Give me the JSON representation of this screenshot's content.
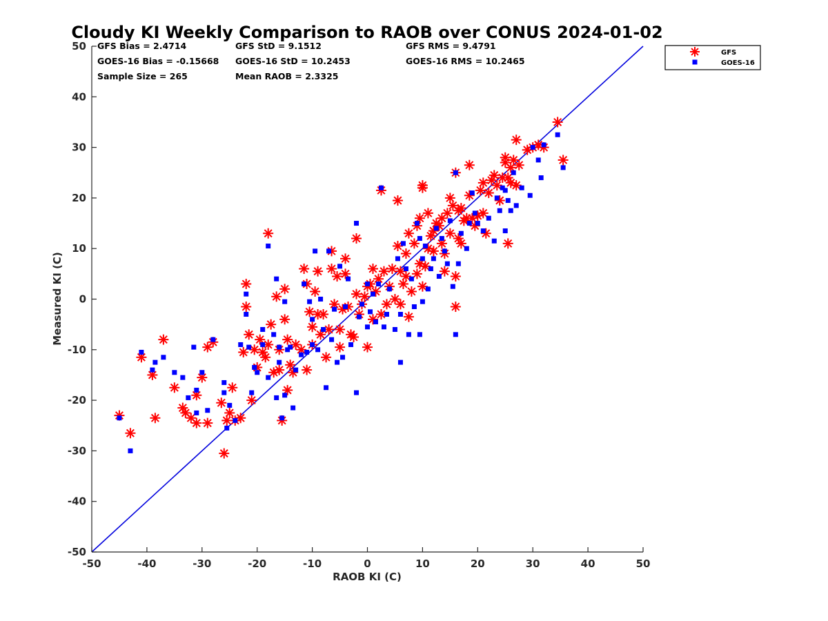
{
  "chart_data": {
    "type": "scatter",
    "title": "Cloudy KI Weekly Comparison to RAOB over CONUS 2024-01-02",
    "xlabel": "RAOB KI (C)",
    "ylabel": "Measured KI (C)",
    "xlim": [
      -50,
      50
    ],
    "ylim": [
      -50,
      50
    ],
    "xticks": [
      "-50",
      "-40",
      "-30",
      "-20",
      "-10",
      "0",
      "10",
      "20",
      "30",
      "40",
      "50"
    ],
    "yticks": [
      "-50",
      "-40",
      "-30",
      "-20",
      "-10",
      "0",
      "10",
      "20",
      "30",
      "40",
      "50"
    ],
    "grid": false,
    "legend_position": "outside top-right",
    "reference_line": {
      "x": [
        -50,
        50
      ],
      "y": [
        -50,
        50
      ],
      "color": "#0000dd"
    },
    "stats": {
      "gfs_bias": "GFS Bias = 2.4714",
      "gfs_std": "GFS StD = 9.1512",
      "gfs_rms": "GFS RMS = 9.4791",
      "goes_bias": "GOES-16 Bias = -0.15668",
      "goes_std": "GOES-16 StD = 10.2453",
      "goes_rms": "GOES-16 RMS = 10.2465",
      "sample_size": "Sample Size = 265",
      "mean_raob": "Mean RAOB = 2.3325"
    },
    "series": [
      {
        "name": "GFS",
        "marker": "asterisk",
        "color": "#ff0000",
        "points": [
          [
            -45,
            -23
          ],
          [
            -43,
            -26.5
          ],
          [
            -41,
            -11.5
          ],
          [
            -39,
            -15
          ],
          [
            -38.5,
            -23.5
          ],
          [
            -37,
            -8
          ],
          [
            -35,
            -17.5
          ],
          [
            -33.5,
            -21.5
          ],
          [
            -33,
            -22.5
          ],
          [
            -32,
            -23.5
          ],
          [
            -31,
            -24.5
          ],
          [
            -31,
            -19
          ],
          [
            -30,
            -15.5
          ],
          [
            -29,
            -24.5
          ],
          [
            -29,
            -9.5
          ],
          [
            -28,
            -8.5
          ],
          [
            -26.5,
            -20.5
          ],
          [
            -26,
            -30.5
          ],
          [
            -25.5,
            -24
          ],
          [
            -25,
            -22.5
          ],
          [
            -24.5,
            -17.5
          ],
          [
            -24,
            -24
          ],
          [
            -23,
            -23.5
          ],
          [
            -22.5,
            -10.5
          ],
          [
            -22,
            3
          ],
          [
            -22,
            -1.5
          ],
          [
            -21.5,
            -7
          ],
          [
            -21,
            -20
          ],
          [
            -20.5,
            -10
          ],
          [
            -20,
            -13.5
          ],
          [
            -19.5,
            -8
          ],
          [
            -19,
            -10.5
          ],
          [
            -18.5,
            -11.5
          ],
          [
            -18,
            13
          ],
          [
            -18,
            -9
          ],
          [
            -17.5,
            -5
          ],
          [
            -17,
            -14.5
          ],
          [
            -16.5,
            0.5
          ],
          [
            -16,
            -10
          ],
          [
            -16,
            -14
          ],
          [
            -15.5,
            -24
          ],
          [
            -15,
            2
          ],
          [
            -15,
            -4
          ],
          [
            -14.5,
            -8
          ],
          [
            -14.5,
            -18
          ],
          [
            -14,
            -13
          ],
          [
            -13.5,
            -14.5
          ],
          [
            -13,
            -9
          ],
          [
            -12,
            -10
          ],
          [
            -11.5,
            6
          ],
          [
            -11,
            3
          ],
          [
            -11,
            -14
          ],
          [
            -10.5,
            -2.5
          ],
          [
            -10,
            -5.5
          ],
          [
            -10,
            -9
          ],
          [
            -9.5,
            1.5
          ],
          [
            -9,
            5.5
          ],
          [
            -9,
            -3
          ],
          [
            -8.5,
            -7
          ],
          [
            -8,
            -3
          ],
          [
            -7.5,
            -11.5
          ],
          [
            -7,
            -6
          ],
          [
            -6.5,
            9.5
          ],
          [
            -6.5,
            6
          ],
          [
            -6,
            -1
          ],
          [
            -5.5,
            4.5
          ],
          [
            -5,
            -9.5
          ],
          [
            -5,
            -6
          ],
          [
            -4.5,
            -2
          ],
          [
            -4,
            8
          ],
          [
            -4,
            5
          ],
          [
            -3.5,
            -1.5
          ],
          [
            -3,
            -7
          ],
          [
            -2.5,
            -7.5
          ],
          [
            -2,
            1
          ],
          [
            -2,
            12
          ],
          [
            -1.5,
            -3
          ],
          [
            -1,
            -1
          ],
          [
            -0.5,
            0.5
          ],
          [
            0,
            -9.5
          ],
          [
            0,
            2.5
          ],
          [
            0.5,
            3
          ],
          [
            1,
            6
          ],
          [
            1,
            -4
          ],
          [
            1.5,
            1.5
          ],
          [
            2,
            4
          ],
          [
            2.5,
            -3
          ],
          [
            2.5,
            21.5
          ],
          [
            3,
            5.5
          ],
          [
            3.5,
            -1
          ],
          [
            4,
            2.5
          ],
          [
            4.5,
            6
          ],
          [
            5,
            0
          ],
          [
            5.5,
            19.5
          ],
          [
            5.5,
            10.5
          ],
          [
            6,
            -1
          ],
          [
            6,
            5.5
          ],
          [
            6.5,
            3
          ],
          [
            7,
            9
          ],
          [
            7,
            4.5
          ],
          [
            7.5,
            -3.5
          ],
          [
            7.5,
            13
          ],
          [
            8,
            1.5
          ],
          [
            8.5,
            11
          ],
          [
            9,
            5
          ],
          [
            9,
            14.5
          ],
          [
            9.5,
            7
          ],
          [
            9.5,
            16
          ],
          [
            10,
            22
          ],
          [
            10,
            22.5
          ],
          [
            10,
            2.5
          ],
          [
            10.5,
            6.5
          ],
          [
            11,
            17
          ],
          [
            11,
            10
          ],
          [
            11.5,
            12.5
          ],
          [
            12,
            9.5
          ],
          [
            12,
            13.5
          ],
          [
            12.5,
            15
          ],
          [
            13,
            14.5
          ],
          [
            13.5,
            11
          ],
          [
            13.5,
            16
          ],
          [
            14,
            9
          ],
          [
            14,
            5.5
          ],
          [
            14.5,
            17
          ],
          [
            15,
            13
          ],
          [
            15,
            20
          ],
          [
            15.5,
            18.5
          ],
          [
            16,
            25
          ],
          [
            16,
            -1.5
          ],
          [
            16,
            4.5
          ],
          [
            16.5,
            12
          ],
          [
            16.5,
            17.5
          ],
          [
            17,
            18
          ],
          [
            17,
            11
          ],
          [
            17.5,
            15.5
          ],
          [
            18,
            16
          ],
          [
            18.5,
            20.5
          ],
          [
            18.5,
            26.5
          ],
          [
            19,
            16
          ],
          [
            19.5,
            14.5
          ],
          [
            20,
            16.5
          ],
          [
            20.5,
            21.5
          ],
          [
            21,
            23
          ],
          [
            21,
            17
          ],
          [
            21.5,
            13
          ],
          [
            22,
            21
          ],
          [
            22.5,
            23.5
          ],
          [
            23,
            24.5
          ],
          [
            23.5,
            22.5
          ],
          [
            24,
            19.5
          ],
          [
            24.5,
            24
          ],
          [
            25,
            27
          ],
          [
            25,
            28
          ],
          [
            25.5,
            11
          ],
          [
            25.5,
            24
          ],
          [
            26,
            26
          ],
          [
            26,
            23
          ],
          [
            26.5,
            27.5
          ],
          [
            27,
            31.5
          ],
          [
            27,
            22.5
          ],
          [
            27.5,
            26.5
          ],
          [
            29,
            29.5
          ],
          [
            30,
            30
          ],
          [
            31,
            30.5
          ],
          [
            32,
            30
          ],
          [
            34.5,
            35
          ],
          [
            35.5,
            27.5
          ]
        ]
      },
      {
        "name": "GOES-16",
        "marker": "square",
        "color": "#0000ff",
        "points": [
          [
            -45,
            -23.5
          ],
          [
            -43,
            -30
          ],
          [
            -41,
            -10.5
          ],
          [
            -39,
            -14
          ],
          [
            -38.5,
            -12.5
          ],
          [
            -37,
            -11.5
          ],
          [
            -35,
            -14.5
          ],
          [
            -33.5,
            -15.5
          ],
          [
            -32.5,
            -19.5
          ],
          [
            -31.5,
            -9.5
          ],
          [
            -31,
            -18
          ],
          [
            -31,
            -22.5
          ],
          [
            -30,
            -14.5
          ],
          [
            -29,
            -22
          ],
          [
            -28,
            -8
          ],
          [
            -26,
            -16.5
          ],
          [
            -26,
            -18.5
          ],
          [
            -25.5,
            -25.5
          ],
          [
            -25,
            -21
          ],
          [
            -24,
            -24
          ],
          [
            -23,
            -9
          ],
          [
            -22,
            1
          ],
          [
            -22,
            -3
          ],
          [
            -21.5,
            -9.5
          ],
          [
            -21,
            -18.5
          ],
          [
            -20.5,
            -13.5
          ],
          [
            -20,
            -14.5
          ],
          [
            -19,
            -6
          ],
          [
            -19,
            -9
          ],
          [
            -18,
            10.5
          ],
          [
            -18,
            -15.5
          ],
          [
            -17,
            -7
          ],
          [
            -16.5,
            4
          ],
          [
            -16.5,
            -19.5
          ],
          [
            -16,
            -12.5
          ],
          [
            -16,
            -9.5
          ],
          [
            -15.5,
            -23.5
          ],
          [
            -15,
            -19
          ],
          [
            -15,
            -0.5
          ],
          [
            -14.5,
            -10
          ],
          [
            -14,
            -9.5
          ],
          [
            -13.5,
            -21.5
          ],
          [
            -13,
            -14
          ],
          [
            -12,
            -11
          ],
          [
            -11.5,
            3
          ],
          [
            -11,
            -10.5
          ],
          [
            -10.5,
            -0.5
          ],
          [
            -10,
            -4
          ],
          [
            -10,
            -9
          ],
          [
            -9.5,
            9.5
          ],
          [
            -9,
            -10
          ],
          [
            -8.5,
            0
          ],
          [
            -8,
            -6
          ],
          [
            -7.5,
            -17.5
          ],
          [
            -7,
            9.5
          ],
          [
            -6.5,
            -8
          ],
          [
            -6,
            -2
          ],
          [
            -5.5,
            -12.5
          ],
          [
            -5,
            6.5
          ],
          [
            -4.5,
            -11.5
          ],
          [
            -4,
            -1.5
          ],
          [
            -3.5,
            4
          ],
          [
            -3,
            -9
          ],
          [
            -2,
            -18.5
          ],
          [
            -2,
            15
          ],
          [
            -1.5,
            -3.5
          ],
          [
            -1,
            -1
          ],
          [
            0,
            3
          ],
          [
            0,
            -5.5
          ],
          [
            0.5,
            -2.5
          ],
          [
            1,
            1
          ],
          [
            1.5,
            -4.5
          ],
          [
            2,
            3
          ],
          [
            2.5,
            22
          ],
          [
            3,
            -5.5
          ],
          [
            3.5,
            -3
          ],
          [
            4,
            2
          ],
          [
            5,
            -6
          ],
          [
            5.5,
            8
          ],
          [
            6,
            -12.5
          ],
          [
            6,
            -3
          ],
          [
            6.5,
            11
          ],
          [
            7,
            6
          ],
          [
            7.5,
            -7
          ],
          [
            8,
            4
          ],
          [
            8.5,
            -1.5
          ],
          [
            9,
            15
          ],
          [
            9.5,
            -7
          ],
          [
            9.5,
            12
          ],
          [
            10,
            8
          ],
          [
            10,
            -0.5
          ],
          [
            10.5,
            10.5
          ],
          [
            11,
            2
          ],
          [
            11.5,
            6
          ],
          [
            12,
            8
          ],
          [
            12.5,
            14
          ],
          [
            13,
            4.5
          ],
          [
            13.5,
            12
          ],
          [
            14,
            9.5
          ],
          [
            14.5,
            7
          ],
          [
            15,
            15.5
          ],
          [
            15.5,
            2.5
          ],
          [
            16,
            25
          ],
          [
            16,
            -7
          ],
          [
            16.5,
            7
          ],
          [
            17,
            13
          ],
          [
            18,
            10
          ],
          [
            18.5,
            15
          ],
          [
            19,
            21
          ],
          [
            19.5,
            17
          ],
          [
            20,
            15
          ],
          [
            21,
            13.5
          ],
          [
            22,
            16
          ],
          [
            23,
            11.5
          ],
          [
            23.5,
            20
          ],
          [
            24,
            17.5
          ],
          [
            24.5,
            22
          ],
          [
            25,
            21.5
          ],
          [
            25,
            13.5
          ],
          [
            25.5,
            19.5
          ],
          [
            26,
            17.5
          ],
          [
            26.5,
            25
          ],
          [
            27,
            18.5
          ],
          [
            28,
            22
          ],
          [
            29.5,
            20.5
          ],
          [
            30,
            30
          ],
          [
            31,
            27.5
          ],
          [
            31.5,
            24
          ],
          [
            32,
            30.5
          ],
          [
            34.5,
            32.5
          ],
          [
            35.5,
            26
          ]
        ]
      }
    ]
  }
}
